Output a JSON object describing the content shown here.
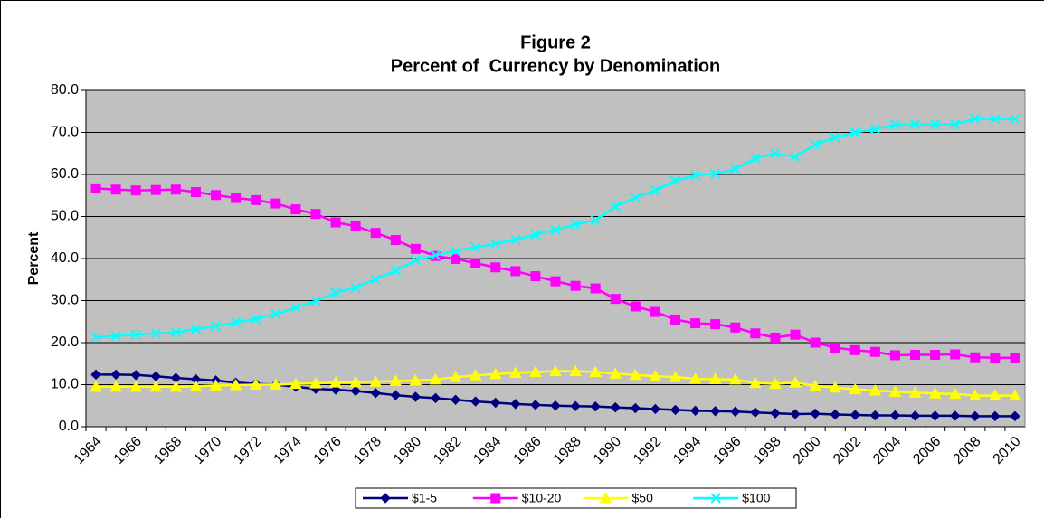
{
  "chart_data": {
    "type": "line",
    "title": "Figure 2",
    "subtitle": "Percent of  Currency by Denomination",
    "y_label": "Percent",
    "categories": [
      "1964",
      null,
      "1966",
      null,
      "1968",
      null,
      "1970",
      null,
      "1972",
      null,
      "1974",
      null,
      "1976",
      null,
      "1978",
      null,
      "1980",
      null,
      "1982",
      null,
      "1984",
      null,
      "1986",
      null,
      "1988",
      null,
      "1990",
      null,
      "1992",
      null,
      "1994",
      null,
      "1996",
      null,
      "1998",
      null,
      "2000",
      null,
      "2002",
      null,
      "2004",
      null,
      "2006",
      null,
      "2008",
      null,
      "2010"
    ],
    "series": [
      {
        "name": "$1-5",
        "color": "#000080",
        "marker": "diamond",
        "values": [
          12.4,
          12.4,
          12.3,
          12.0,
          11.6,
          11.3,
          11.0,
          10.5,
          10.2,
          10.0,
          9.5,
          9.0,
          8.8,
          8.5,
          8.0,
          7.5,
          7.1,
          6.8,
          6.4,
          6.0,
          5.7,
          5.4,
          5.2,
          5.0,
          4.9,
          4.8,
          4.6,
          4.4,
          4.2,
          4.0,
          3.8,
          3.7,
          3.6,
          3.4,
          3.2,
          3.0,
          3.1,
          2.9,
          2.8,
          2.7,
          2.7,
          2.6,
          2.6,
          2.6,
          2.5,
          2.5,
          2.5
        ]
      },
      {
        "name": "$10-20",
        "color": "#ff00ff",
        "marker": "square",
        "values": [
          56.7,
          56.4,
          56.2,
          56.3,
          56.4,
          55.8,
          55.1,
          54.4,
          53.9,
          53.1,
          51.7,
          50.6,
          48.6,
          47.7,
          46.1,
          44.4,
          42.3,
          40.6,
          39.9,
          38.9,
          37.9,
          37.0,
          35.8,
          34.6,
          33.5,
          32.9,
          30.4,
          28.6,
          27.3,
          25.5,
          24.6,
          24.4,
          23.6,
          22.2,
          21.2,
          21.9,
          20.0,
          18.8,
          18.2,
          17.8,
          17.0,
          17.1,
          17.1,
          17.2,
          16.5,
          16.4,
          16.4
        ]
      },
      {
        "name": "$50",
        "color": "#ffff00",
        "marker": "triangle",
        "values": [
          9.5,
          9.5,
          9.5,
          9.5,
          9.5,
          9.6,
          9.8,
          9.9,
          10.0,
          10.0,
          10.2,
          10.3,
          10.5,
          10.6,
          10.7,
          10.9,
          11.0,
          11.2,
          11.8,
          12.2,
          12.5,
          12.8,
          13.0,
          13.2,
          13.2,
          13.0,
          12.6,
          12.3,
          12.0,
          11.8,
          11.4,
          11.3,
          11.2,
          10.4,
          10.2,
          10.5,
          9.7,
          9.3,
          8.9,
          8.6,
          8.3,
          8.1,
          7.9,
          7.8,
          7.4,
          7.4,
          7.4
        ]
      },
      {
        "name": "$100",
        "color": "#00ffff",
        "marker": "x",
        "values": [
          21.3,
          21.6,
          21.9,
          22.2,
          22.4,
          23.2,
          23.9,
          24.8,
          25.6,
          26.8,
          28.4,
          29.9,
          31.8,
          33.1,
          35.1,
          37.1,
          39.6,
          40.8,
          41.8,
          42.7,
          43.5,
          44.5,
          45.7,
          46.8,
          48.1,
          49.1,
          52.4,
          54.5,
          56.2,
          58.5,
          59.8,
          60.1,
          61.3,
          63.8,
          65.0,
          64.2,
          67.1,
          68.8,
          70.0,
          70.8,
          71.8,
          71.9,
          71.9,
          71.9,
          73.3,
          73.2,
          73.2
        ]
      }
    ],
    "ylim": [
      0,
      80
    ],
    "yticks": [
      {
        "value": 0,
        "label": "0.0"
      },
      {
        "value": 10,
        "label": "10.0"
      },
      {
        "value": 20,
        "label": "20.0"
      },
      {
        "value": 30,
        "label": "30.0"
      },
      {
        "value": 40,
        "label": "40.0"
      },
      {
        "value": 50,
        "label": "50.0"
      },
      {
        "value": 60,
        "label": "60.0"
      },
      {
        "value": 70,
        "label": "70.0"
      },
      {
        "value": 80,
        "label": "80.0"
      }
    ],
    "grid": true,
    "plot_background": "#c0c0c0",
    "legend": "bottom"
  }
}
